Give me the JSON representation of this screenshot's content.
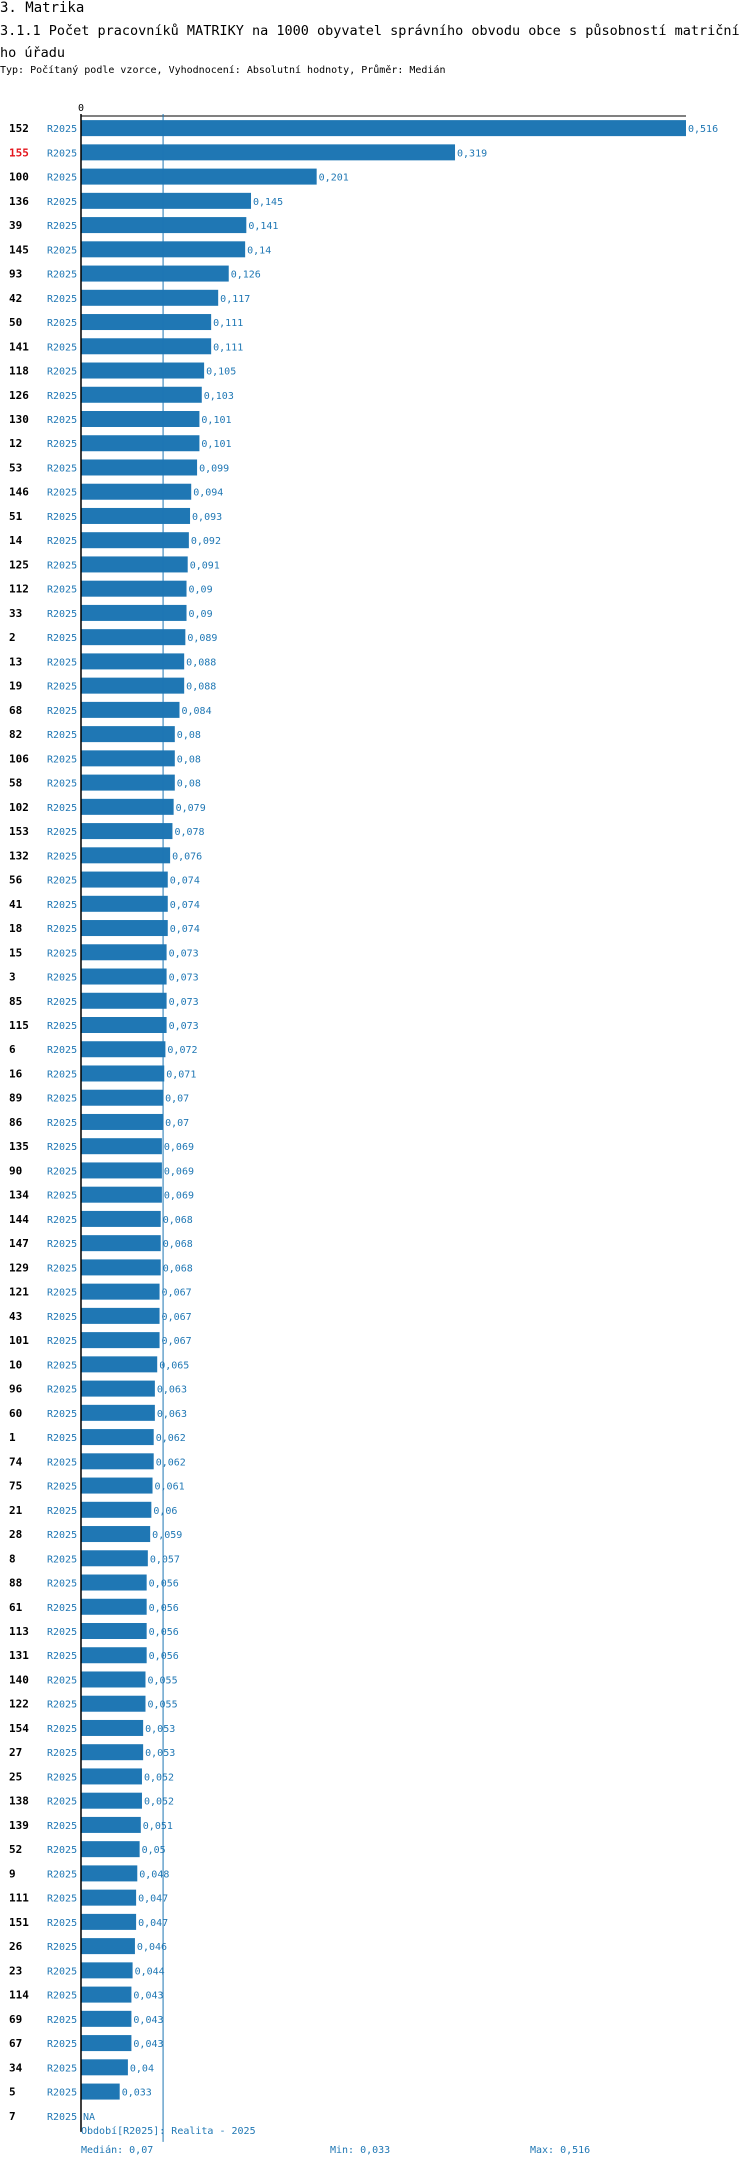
{
  "section_title": "3. Matrika",
  "chart_title": "3.1.1 Počet pracovníků MATRIKY na 1000 obyvatel správního obvodu obce s působností matričního úřadu",
  "subtitle": "Typ: Počítaný podle vzorce, Vyhodnocení: Absolutní hodnoty, Průměr: Medián",
  "colors": {
    "bar": "#1f77b4",
    "highlight_label": "#e4141b",
    "axis": "#000000"
  },
  "chart_data": {
    "type": "bar",
    "orientation": "horizontal",
    "series_name": "R2025",
    "zero_label": "0",
    "xlim": [
      0,
      0.516
    ],
    "median": 0.07,
    "highlight_category": "155",
    "categories": [
      "152",
      "155",
      "100",
      "136",
      "39",
      "145",
      "93",
      "42",
      "50",
      "141",
      "118",
      "126",
      "130",
      "12",
      "53",
      "146",
      "51",
      "14",
      "125",
      "112",
      "33",
      "2",
      "13",
      "19",
      "68",
      "82",
      "106",
      "58",
      "102",
      "153",
      "132",
      "56",
      "41",
      "18",
      "15",
      "3",
      "85",
      "115",
      "6",
      "16",
      "89",
      "86",
      "135",
      "90",
      "134",
      "144",
      "147",
      "129",
      "121",
      "43",
      "101",
      "10",
      "96",
      "60",
      "1",
      "74",
      "75",
      "21",
      "28",
      "8",
      "88",
      "61",
      "113",
      "131",
      "140",
      "122",
      "154",
      "27",
      "25",
      "138",
      "139",
      "52",
      "9",
      "111",
      "151",
      "26",
      "23",
      "114",
      "69",
      "67",
      "34",
      "5",
      "7"
    ],
    "values": [
      0.516,
      0.319,
      0.201,
      0.145,
      0.141,
      0.14,
      0.126,
      0.117,
      0.111,
      0.111,
      0.105,
      0.103,
      0.101,
      0.101,
      0.099,
      0.094,
      0.093,
      0.092,
      0.091,
      0.09,
      0.09,
      0.089,
      0.088,
      0.088,
      0.084,
      0.08,
      0.08,
      0.08,
      0.079,
      0.078,
      0.076,
      0.074,
      0.074,
      0.074,
      0.073,
      0.073,
      0.073,
      0.073,
      0.072,
      0.071,
      0.07,
      0.07,
      0.069,
      0.069,
      0.069,
      0.068,
      0.068,
      0.068,
      0.067,
      0.067,
      0.067,
      0.065,
      0.063,
      0.063,
      0.062,
      0.062,
      0.061,
      0.06,
      0.059,
      0.057,
      0.056,
      0.056,
      0.056,
      0.056,
      0.055,
      0.055,
      0.053,
      0.053,
      0.052,
      0.052,
      0.051,
      0.05,
      0.048,
      0.047,
      0.047,
      0.046,
      0.044,
      0.043,
      0.043,
      0.043,
      0.04,
      0.033,
      null
    ],
    "value_labels": [
      "0,516",
      "0,319",
      "0,201",
      "0,145",
      "0,141",
      "0,14",
      "0,126",
      "0,117",
      "0,111",
      "0,111",
      "0,105",
      "0,103",
      "0,101",
      "0,101",
      "0,099",
      "0,094",
      "0,093",
      "0,092",
      "0,091",
      "0,09",
      "0,09",
      "0,089",
      "0,088",
      "0,088",
      "0,084",
      "0,08",
      "0,08",
      "0,08",
      "0,079",
      "0,078",
      "0,076",
      "0,074",
      "0,074",
      "0,074",
      "0,073",
      "0,073",
      "0,073",
      "0,073",
      "0,072",
      "0,071",
      "0,07",
      "0,07",
      "0,069",
      "0,069",
      "0,069",
      "0,068",
      "0,068",
      "0,068",
      "0,067",
      "0,067",
      "0,067",
      "0,065",
      "0,063",
      "0,063",
      "0,062",
      "0,062",
      "0,061",
      "0,06",
      "0,059",
      "0,057",
      "0,056",
      "0,056",
      "0,056",
      "0,056",
      "0,055",
      "0,055",
      "0,053",
      "0,053",
      "0,052",
      "0,052",
      "0,051",
      "0,05",
      "0,048",
      "0,047",
      "0,047",
      "0,046",
      "0,044",
      "0,043",
      "0,043",
      "0,043",
      "0,04",
      "0,033",
      "NA"
    ]
  },
  "footer": {
    "period": "Období[R2025]: Realita - 2025",
    "median": "Medián: 0,07",
    "min": "Min: 0,033",
    "max": "Max: 0,516"
  }
}
